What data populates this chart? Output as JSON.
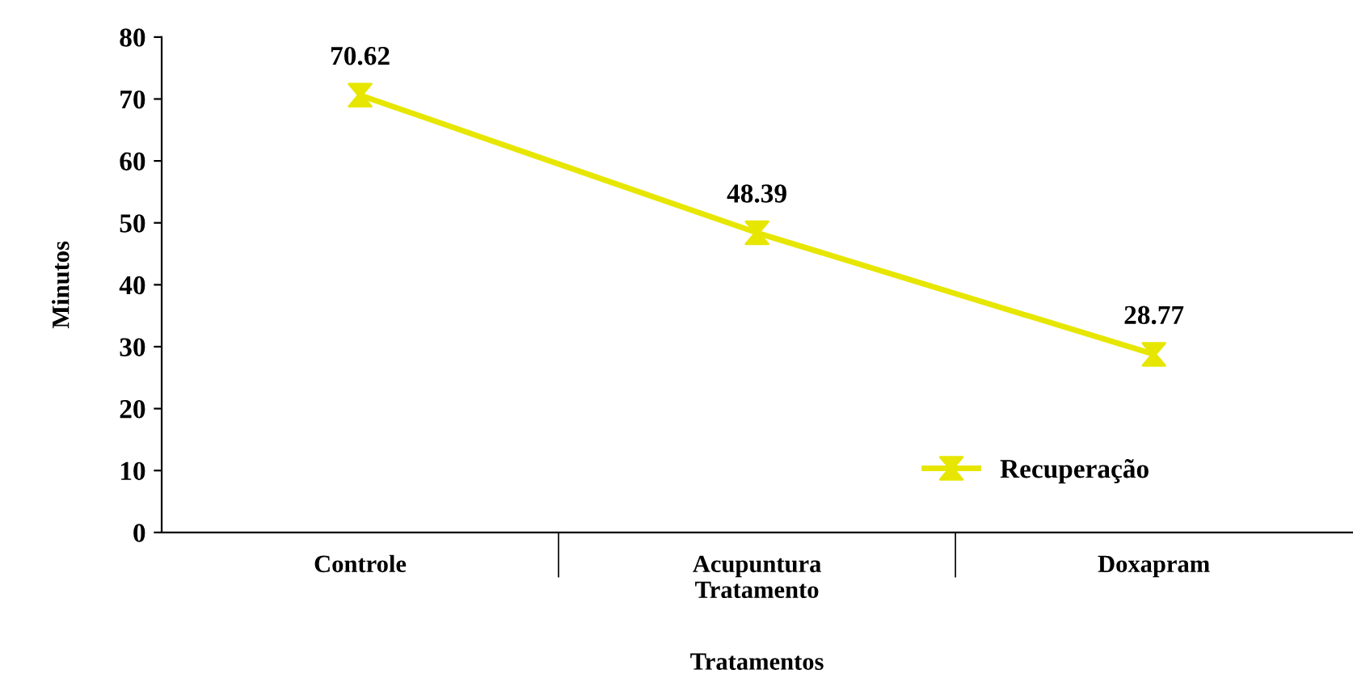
{
  "chart_data": {
    "type": "line",
    "xlabel": "Tratamentos",
    "ylabel": "Minutos",
    "categories": [
      "Controle",
      "Acupuntura\nTratamento",
      "Doxapram"
    ],
    "series": [
      {
        "name": "Recuperação",
        "color": "#e6e600",
        "values": [
          70.62,
          48.39,
          28.77
        ]
      }
    ],
    "ylim": [
      0,
      80
    ],
    "yticks": [
      0,
      10,
      20,
      30,
      40,
      50,
      60,
      70,
      80
    ],
    "marker": "cross",
    "line_style": "solid",
    "data_labels": true,
    "legend": "bottom right",
    "grid": false
  }
}
